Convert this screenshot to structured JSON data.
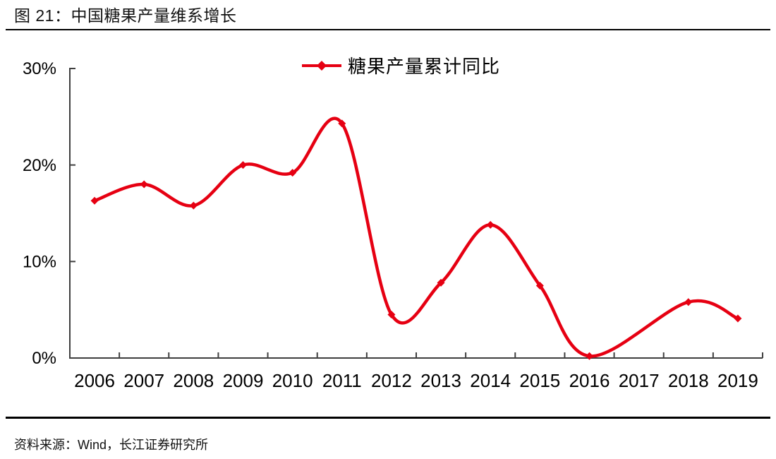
{
  "figure": {
    "title": "图  21：中国糖果产量维系增长",
    "source": "资料来源：Wind，长江证券研究所"
  },
  "chart_data": {
    "type": "line",
    "title": "图 21：中国糖果产量维系增长",
    "legend": {
      "label": "糖果产量累计同比",
      "position": "top-center",
      "marker": "diamond-on-line"
    },
    "x_categories": [
      2006,
      2007,
      2008,
      2009,
      2010,
      2011,
      2012,
      2013,
      2014,
      2015,
      2016,
      2017,
      2018,
      2019
    ],
    "yticks": [
      {
        "label": "0%",
        "value": 0
      },
      {
        "label": "10%",
        "value": 10
      },
      {
        "label": "20%",
        "value": 20
      },
      {
        "label": "30%",
        "value": 30
      }
    ],
    "ylim": [
      0,
      30
    ],
    "grid": false,
    "smooth": true,
    "colors": {
      "line": "#e60012",
      "axis": "#3f3f3f",
      "text": "#000000"
    },
    "series": [
      {
        "name": "糖果产量累计同比",
        "marker": "diamond",
        "points": [
          [
            2006,
            16.3
          ],
          [
            2007,
            18.0
          ],
          [
            2008,
            15.8
          ],
          [
            2009,
            20.0
          ],
          [
            2010,
            19.2
          ],
          [
            2011,
            24.3
          ],
          [
            2012,
            4.5
          ],
          [
            2013,
            7.8
          ],
          [
            2014,
            13.8
          ],
          [
            2015,
            7.5
          ],
          [
            2016,
            0.2
          ],
          [
            2018,
            5.8
          ],
          [
            2019,
            4.1
          ]
        ]
      }
    ]
  }
}
